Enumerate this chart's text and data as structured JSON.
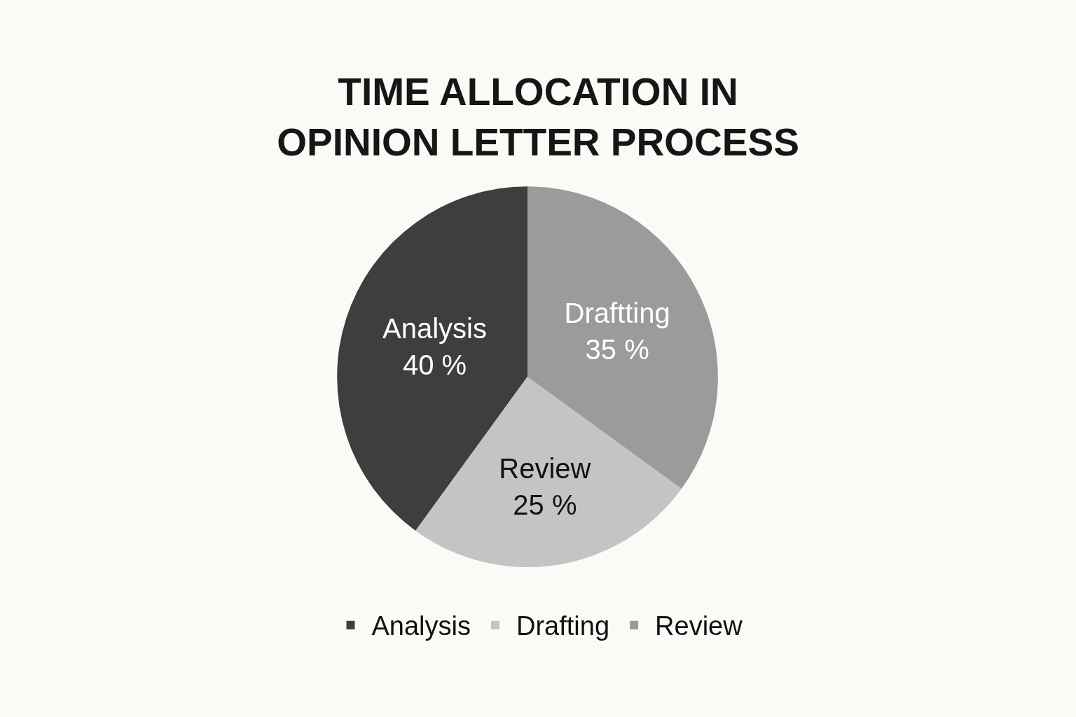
{
  "chart_data": {
    "type": "pie",
    "title": "TIME ALLOCATION IN\nOPINION LETTER PROCESS",
    "categories": [
      "Analysis",
      "Drafting",
      "Review"
    ],
    "values": [
      40,
      25,
      35
    ],
    "colors": [
      "#3e3e3e",
      "#c4c4c4",
      "#9b9b9b"
    ],
    "value_labels": [
      "Analysis\n40 %",
      "Review\n25 %",
      "Draftting\n35 %"
    ],
    "legend": "bottom"
  }
}
